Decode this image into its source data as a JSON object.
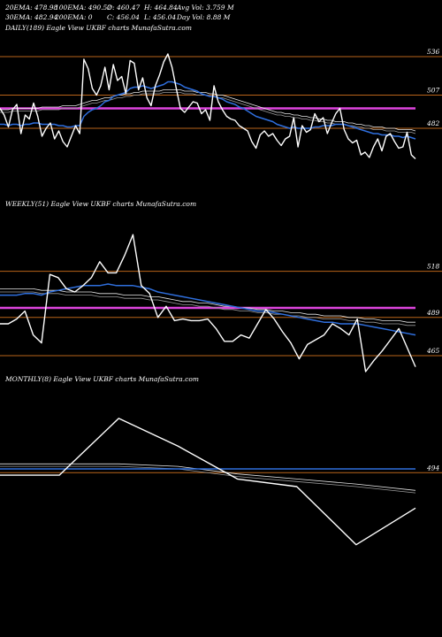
{
  "header": {
    "row1": [
      "20EMA: 478.98",
      "100EMA: 490.52",
      "O: 460.47",
      "H: 464.84",
      "Avg Vol: 3.759 M"
    ],
    "row2": [
      "30EMA: 482.94",
      "200EMA: 0",
      "C: 456.04",
      "L: 456.04",
      "Day Vol: 8.88  M"
    ]
  },
  "colors": {
    "background": "#000000",
    "price": "#ffffff",
    "ema_fast": "#2f6fde",
    "ema_slow_a": "#e6e6e6",
    "ema_slow_b": "#9a9a9a",
    "level_line": "#b8641a",
    "magenta_line": "#dd44dd",
    "text": "#ffffff"
  },
  "chart_data": [
    {
      "type": "line",
      "title": "DAILY(189) Eagle  View  UKBF charts MunafaSutra.com",
      "ylim": [
        432,
        552
      ],
      "level_labels": [
        "536",
        "507",
        "482"
      ],
      "levels": [
        536,
        507,
        482
      ],
      "magenta_level": 497,
      "x": [
        0,
        1,
        2,
        3,
        4,
        5,
        6,
        7,
        8,
        9,
        10,
        11,
        12,
        13,
        14,
        15,
        16,
        17,
        18,
        19,
        20,
        21,
        22,
        23,
        24,
        25,
        26,
        27,
        28,
        29,
        30,
        31,
        32,
        33,
        34,
        35,
        36,
        37,
        38,
        39,
        40,
        41,
        42,
        43,
        44,
        45,
        46,
        47,
        48,
        49,
        50,
        51,
        52,
        53,
        54,
        55,
        56,
        57,
        58,
        59,
        60,
        61,
        62,
        63,
        64,
        65,
        66,
        67,
        68,
        69,
        70,
        71,
        72,
        73,
        74,
        75,
        76,
        77,
        78,
        79,
        80,
        81,
        82,
        83,
        84,
        85,
        86,
        87,
        88,
        89,
        90,
        91,
        92,
        93,
        94,
        95,
        96,
        97,
        98,
        99
      ],
      "series": [
        {
          "role": "price",
          "values": [
            497,
            492,
            483,
            496,
            500,
            478,
            492,
            489,
            501,
            491,
            476,
            482,
            486,
            474,
            480,
            472,
            468,
            476,
            484,
            478,
            534,
            527,
            512,
            507,
            514,
            528,
            511,
            530,
            518,
            521,
            508,
            533,
            531,
            511,
            520,
            505,
            499,
            514,
            522,
            532,
            538,
            528,
            512,
            497,
            494,
            498,
            502,
            501,
            493,
            496,
            488,
            514,
            502,
            496,
            491,
            489,
            488,
            484,
            482,
            480,
            472,
            467,
            477,
            480,
            476,
            478,
            473,
            469,
            474,
            476,
            490,
            468,
            484,
            479,
            481,
            493,
            487,
            490,
            478,
            486,
            493,
            497,
            481,
            474,
            471,
            473,
            462,
            464,
            460,
            468,
            474,
            465,
            476,
            478,
            472,
            467,
            468,
            479,
            462,
            459
          ]
        },
        {
          "role": "ema_fast",
          "values": [
            485,
            485,
            484,
            485,
            485,
            484,
            485,
            485,
            486,
            486,
            485,
            485,
            485,
            485,
            484,
            484,
            483,
            483,
            484,
            484,
            491,
            494,
            496,
            497,
            499,
            502,
            503,
            506,
            507,
            508,
            509,
            512,
            513,
            513,
            514,
            513,
            512,
            513,
            514,
            515,
            517,
            517,
            516,
            515,
            513,
            512,
            511,
            510,
            508,
            507,
            506,
            506,
            505,
            504,
            502,
            501,
            500,
            498,
            497,
            495,
            493,
            491,
            490,
            489,
            488,
            487,
            485,
            484,
            483,
            482,
            483,
            482,
            482,
            482,
            482,
            483,
            483,
            484,
            484,
            484,
            485,
            485,
            485,
            484,
            483,
            482,
            481,
            480,
            479,
            478,
            478,
            477,
            477,
            477,
            476,
            476,
            475,
            476,
            475,
            474
          ]
        },
        {
          "role": "ema_slow_a",
          "values": [
            496,
            496,
            496,
            497,
            497,
            497,
            497,
            497,
            497,
            497,
            498,
            498,
            498,
            498,
            498,
            499,
            499,
            499,
            499,
            500,
            501,
            502,
            503,
            503,
            504,
            505,
            505,
            506,
            507,
            507,
            508,
            508,
            509,
            509,
            510,
            510,
            510,
            510,
            510,
            511,
            511,
            511,
            511,
            511,
            510,
            510,
            510,
            509,
            509,
            509,
            508,
            508,
            507,
            507,
            506,
            505,
            504,
            503,
            502,
            501,
            500,
            499,
            498,
            497,
            496,
            495,
            494,
            494,
            493,
            493,
            492,
            492,
            491,
            491,
            490,
            490,
            489,
            489,
            488,
            488,
            487,
            487,
            487,
            486,
            486,
            485,
            485,
            484,
            484,
            483,
            483,
            483,
            482,
            482,
            482,
            481,
            481,
            481,
            481,
            480
          ]
        },
        {
          "role": "ema_slow_b",
          "values": [
            494,
            494,
            494,
            495,
            495,
            495,
            495,
            495,
            495,
            495,
            496,
            496,
            496,
            496,
            496,
            497,
            497,
            497,
            497,
            498,
            499,
            500,
            501,
            501,
            502,
            503,
            503,
            504,
            505,
            505,
            506,
            506,
            507,
            507,
            508,
            508,
            508,
            508,
            508,
            509,
            509,
            509,
            509,
            509,
            508,
            508,
            508,
            507,
            507,
            507,
            506,
            506,
            505,
            505,
            504,
            503,
            502,
            501,
            500,
            499,
            498,
            497,
            496,
            495,
            494,
            493,
            492,
            492,
            491,
            491,
            490,
            490,
            489,
            489,
            488,
            488,
            487,
            487,
            486,
            486,
            485,
            485,
            485,
            484,
            484,
            483,
            483,
            482,
            482,
            481,
            481,
            481,
            480,
            480,
            480,
            479,
            479,
            479,
            479,
            478
          ]
        }
      ]
    },
    {
      "type": "line",
      "title": "WEEKLY(51) Eagle  View  UKBF charts MunafaSutra.com",
      "ylim": [
        455,
        555
      ],
      "level_labels": [
        "518",
        "489",
        "465"
      ],
      "levels": [
        518,
        489,
        465
      ],
      "magenta_level": 495,
      "x": [
        0,
        1,
        2,
        3,
        4,
        5,
        6,
        7,
        8,
        9,
        10,
        11,
        12,
        13,
        14,
        15,
        16,
        17,
        18,
        19,
        20,
        21,
        22,
        23,
        24,
        25,
        26,
        27,
        28,
        29,
        30,
        31,
        32,
        33,
        34,
        35,
        36,
        37,
        38,
        39,
        40,
        41,
        42,
        43,
        44,
        45,
        46,
        47,
        48,
        49,
        50
      ],
      "series": [
        {
          "role": "price",
          "values": [
            485,
            485,
            488,
            493,
            478,
            473,
            516,
            514,
            507,
            505,
            509,
            514,
            524,
            517,
            517,
            528,
            541,
            509,
            504,
            489,
            496,
            487,
            488,
            487,
            487,
            488,
            482,
            474,
            474,
            478,
            476,
            485,
            494,
            488,
            480,
            473,
            463,
            472,
            475,
            478,
            485,
            482,
            478,
            488,
            455,
            462,
            468,
            475,
            482,
            470,
            458
          ]
        },
        {
          "role": "ema_fast",
          "values": [
            503,
            503,
            503,
            504,
            504,
            503,
            505,
            506,
            507,
            508,
            509,
            509,
            509,
            510,
            509,
            509,
            509,
            508,
            507,
            505,
            504,
            503,
            502,
            501,
            500,
            499,
            498,
            497,
            496,
            495,
            494,
            493,
            493,
            492,
            491,
            490,
            489,
            488,
            487,
            486,
            486,
            485,
            485,
            485,
            484,
            483,
            482,
            481,
            480,
            479,
            478
          ]
        },
        {
          "role": "ema_slow_a",
          "values": [
            507,
            507,
            507,
            507,
            507,
            506,
            506,
            506,
            505,
            505,
            505,
            505,
            504,
            504,
            504,
            503,
            503,
            503,
            502,
            502,
            501,
            500,
            499,
            499,
            498,
            498,
            497,
            496,
            496,
            495,
            495,
            494,
            494,
            493,
            493,
            492,
            492,
            491,
            491,
            490,
            490,
            490,
            489,
            489,
            488,
            488,
            487,
            487,
            487,
            486,
            486
          ]
        },
        {
          "role": "ema_slow_b",
          "values": [
            505,
            505,
            505,
            505,
            505,
            504,
            504,
            504,
            503,
            503,
            503,
            503,
            502,
            502,
            502,
            501,
            501,
            501,
            500,
            500,
            499,
            498,
            497,
            497,
            496,
            496,
            495,
            494,
            494,
            493,
            493,
            492,
            492,
            491,
            491,
            490,
            490,
            489,
            489,
            488,
            488,
            488,
            487,
            487,
            486,
            486,
            485,
            485,
            485,
            484,
            484
          ]
        }
      ]
    },
    {
      "type": "line",
      "title": "MONTHLY(8) Eagle  View  UKBF charts MunafaSutra.com",
      "ylim": [
        420,
        560
      ],
      "level_labels": [
        "494"
      ],
      "levels": [
        494
      ],
      "x": [
        0,
        1,
        2,
        3,
        4,
        5,
        6,
        7
      ],
      "series": [
        {
          "role": "price",
          "values": [
            492,
            492,
            537,
            515,
            489,
            483,
            437,
            466
          ]
        },
        {
          "role": "ema_fast",
          "values": [
            497,
            497,
            497,
            497,
            497,
            497,
            497,
            497
          ]
        },
        {
          "role": "ema_slow_a",
          "values": [
            501,
            501,
            501,
            499,
            493,
            489,
            485,
            480
          ]
        },
        {
          "role": "ema_slow_b",
          "values": [
            499,
            499,
            499,
            497,
            491,
            487,
            483,
            478
          ]
        }
      ]
    }
  ]
}
